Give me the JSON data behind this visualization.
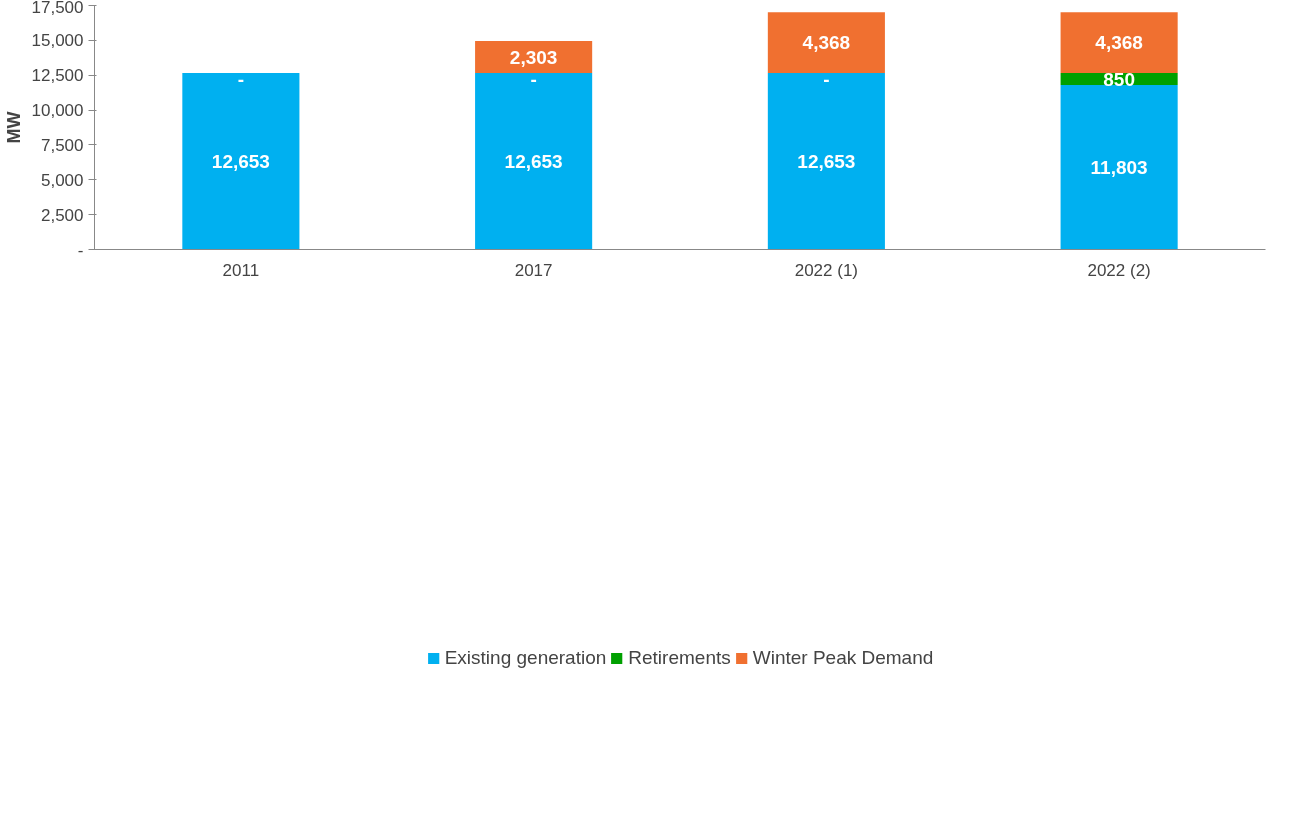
{
  "chart_data": {
    "type": "bar",
    "stacked": true,
    "ylabel": "MW",
    "categories": [
      "2011",
      "2017",
      "2022 (1)",
      "2022 (2)"
    ],
    "series": [
      {
        "name": "Existing generation",
        "color": "#00b0f0",
        "values": [
          12653,
          12653,
          12653,
          11803
        ],
        "value_labels": [
          "12,653",
          "12,653",
          "12,653",
          "11,803"
        ]
      },
      {
        "name": "Retirements",
        "color": "#00a000",
        "values": [
          0,
          0,
          0,
          850
        ],
        "value_labels": [
          "-",
          "-",
          "-",
          "850"
        ]
      },
      {
        "name": "Winter Peak Demand",
        "color": "#f07030",
        "values": [
          null,
          2303,
          4368,
          4368
        ],
        "value_labels": [
          null,
          "2,303",
          "4,368",
          "4,368"
        ]
      }
    ],
    "ylim": [
      0,
      17500
    ],
    "yticks": [
      {
        "value": 0,
        "label": "-"
      },
      {
        "value": 2500,
        "label": "2,500"
      },
      {
        "value": 5000,
        "label": "5,000"
      },
      {
        "value": 7500,
        "label": "7,500"
      },
      {
        "value": 10000,
        "label": "10,000"
      },
      {
        "value": 12500,
        "label": "12,500"
      },
      {
        "value": 15000,
        "label": "15,000"
      },
      {
        "value": 17500,
        "label": "17,500"
      }
    ],
    "grid": false,
    "legend": "bottom"
  }
}
